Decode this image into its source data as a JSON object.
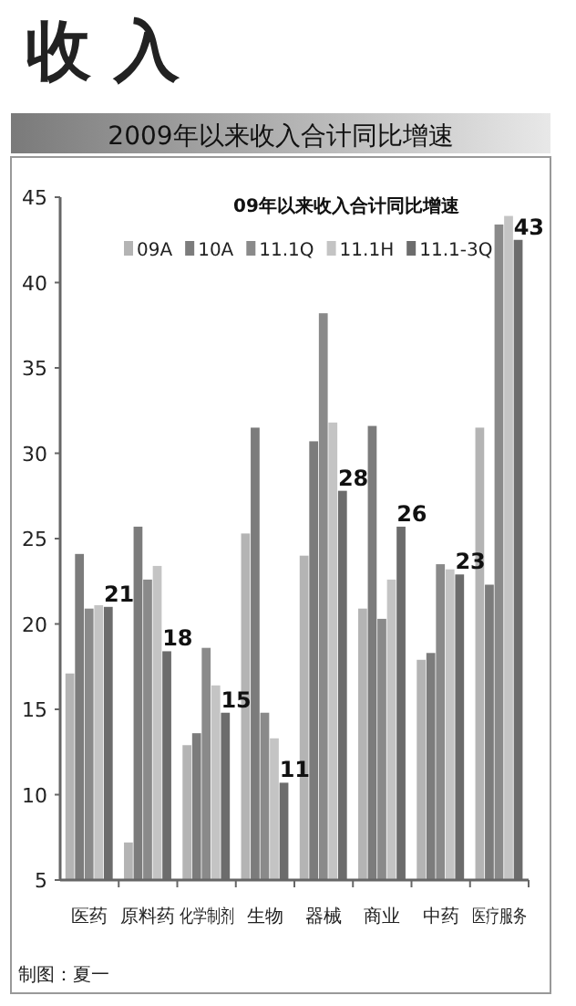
{
  "chart_data": {
    "type": "bar",
    "title": "收 入",
    "subtitle": "2009年以来收入合计同比增速",
    "annotations": [
      "09年以来收入合计同比增速",
      "制图：夏一"
    ],
    "categories": [
      "医药",
      "原料药",
      "化学制剂",
      "生物",
      "器械",
      "商业",
      "中药",
      "医疗服务"
    ],
    "series": [
      {
        "name": "09A",
        "color": "#b4b4b4",
        "values": [
          17.1,
          7.2,
          12.9,
          25.3,
          24.0,
          20.9,
          17.9,
          31.5
        ]
      },
      {
        "name": "10A",
        "color": "#7c7c7c",
        "values": [
          24.1,
          25.7,
          13.6,
          31.5,
          30.7,
          31.6,
          18.3,
          22.3
        ]
      },
      {
        "name": "11.1Q",
        "color": "#8a8a8a",
        "values": [
          20.9,
          22.6,
          18.6,
          14.8,
          38.2,
          20.3,
          23.5,
          43.4
        ]
      },
      {
        "name": "11.1H",
        "color": "#c4c4c4",
        "values": [
          21.1,
          23.4,
          16.4,
          13.3,
          31.8,
          22.6,
          23.2,
          43.9
        ]
      },
      {
        "name": "11.1-3Q",
        "color": "#6c6c6c",
        "values": [
          21.0,
          18.4,
          14.8,
          10.7,
          27.8,
          25.7,
          22.9,
          42.5
        ],
        "value_labels": [
          "21",
          "18",
          "15",
          "11",
          "28",
          "26",
          "23",
          "43"
        ]
      }
    ],
    "ylim": [
      5,
      45
    ],
    "yticks": [
      5,
      10,
      15,
      20,
      25,
      30,
      35,
      40,
      45
    ],
    "legend": "top"
  }
}
